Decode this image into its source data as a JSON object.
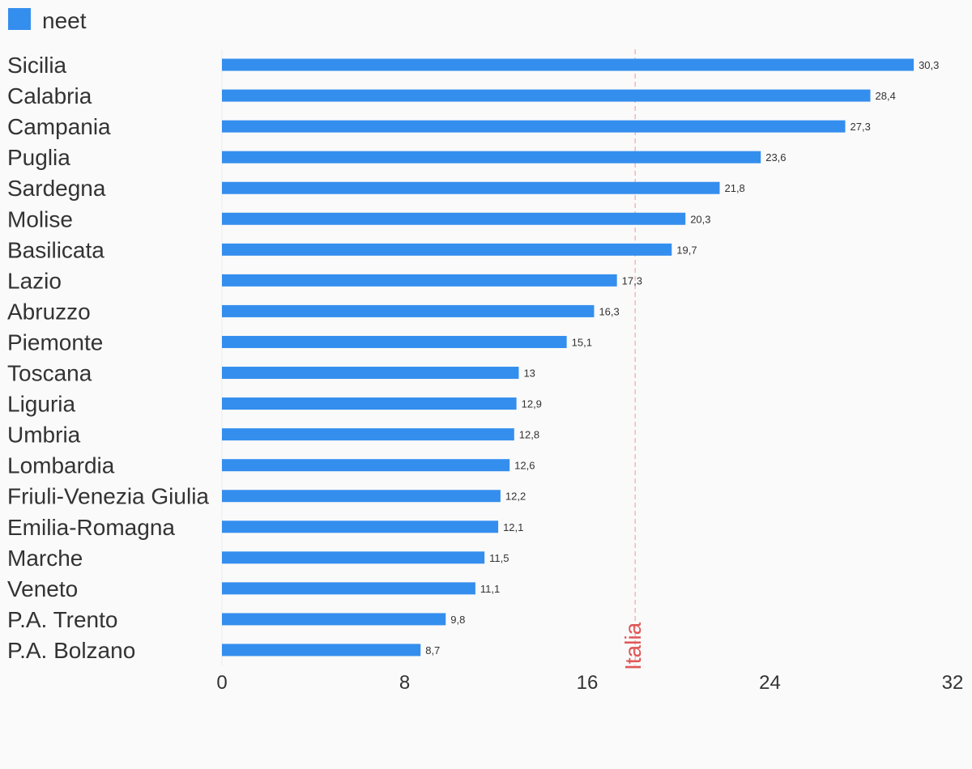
{
  "chart_data": {
    "type": "bar",
    "orientation": "horizontal",
    "legend": {
      "position": "top-left",
      "entries": [
        "neet"
      ]
    },
    "series": [
      {
        "name": "neet",
        "color": "#348eee",
        "values": [
          30.3,
          28.4,
          27.3,
          23.6,
          21.8,
          20.3,
          19.7,
          17.3,
          16.3,
          15.1,
          13,
          12.9,
          12.8,
          12.6,
          12.2,
          12.1,
          11.5,
          11.1,
          9.8,
          8.7
        ],
        "value_labels": [
          "30,3",
          "28,4",
          "27,3",
          "23,6",
          "21,8",
          "20,3",
          "19,7",
          "17,3",
          "16,3",
          "15,1",
          "13",
          "12,9",
          "12,8",
          "12,6",
          "12,2",
          "12,1",
          "11,5",
          "11,1",
          "9,8",
          "8,7"
        ]
      }
    ],
    "categories": [
      "Sicilia",
      "Calabria",
      "Campania",
      "Puglia",
      "Sardegna",
      "Molise",
      "Basilicata",
      "Lazio",
      "Abruzzo",
      "Piemonte",
      "Toscana",
      "Liguria",
      "Umbria",
      "Lombardia",
      "Friuli-Venezia Giulia",
      "Emilia-Romagna",
      "Marche",
      "Veneto",
      "P.A. Trento",
      "P.A. Bolzano"
    ],
    "xlim": [
      0,
      32
    ],
    "xticks": [
      0,
      8,
      16,
      24,
      32
    ],
    "xtick_labels": [
      "0",
      "8",
      "16",
      "24",
      "32"
    ],
    "grid": false,
    "reference_line": {
      "label": "Italia",
      "value": 18.1,
      "color": "#e05656",
      "style": "dashed"
    }
  }
}
